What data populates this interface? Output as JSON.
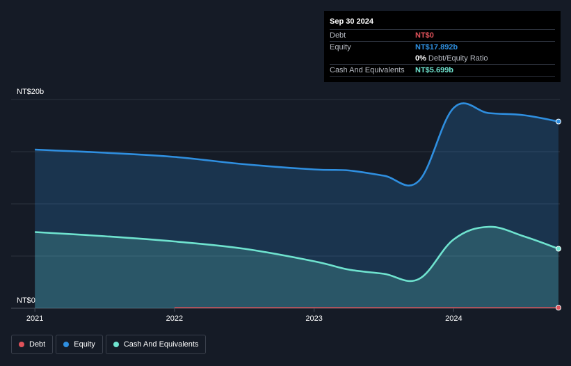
{
  "tooltip": {
    "date": "Sep 30 2024",
    "debt_label": "Debt",
    "debt_value": "NT$0",
    "equity_label": "Equity",
    "equity_value": "NT$17.892b",
    "ratio_value": "0%",
    "ratio_label": "Debt/Equity Ratio",
    "cash_label": "Cash And Equivalents",
    "cash_value": "NT$5.699b"
  },
  "legend": {
    "debt": "Debt",
    "equity": "Equity",
    "cash": "Cash And Equivalents"
  },
  "colors": {
    "debt": "#e0525a",
    "equity": "#2f8fe0",
    "cash": "#6fe3cf",
    "background": "#151b26"
  },
  "chart_data": {
    "type": "area",
    "y_axis_labels": [
      "NT$20b",
      "NT$0"
    ],
    "x_tick_labels": [
      "2021",
      "2022",
      "2023",
      "2024"
    ],
    "x_ticks": [
      2021.0,
      2022.0,
      2023.0,
      2024.0
    ],
    "xlim": [
      2020.83,
      2024.76
    ],
    "ylim": [
      0,
      20
    ],
    "grid": true,
    "legend_position": "bottom-left",
    "series": [
      {
        "name": "Equity",
        "x": [
          2021.0,
          2021.5,
          2022.0,
          2022.5,
          2023.0,
          2023.25,
          2023.5,
          2023.75,
          2024.0,
          2024.25,
          2024.5,
          2024.75
        ],
        "values": [
          15.2,
          14.9,
          14.5,
          13.8,
          13.3,
          13.2,
          12.7,
          12.2,
          19.2,
          18.7,
          18.5,
          17.892
        ]
      },
      {
        "name": "Cash And Equivalents",
        "x": [
          2021.0,
          2021.5,
          2022.0,
          2022.5,
          2023.0,
          2023.25,
          2023.5,
          2023.75,
          2024.0,
          2024.25,
          2024.5,
          2024.75
        ],
        "values": [
          7.3,
          6.9,
          6.4,
          5.7,
          4.5,
          3.7,
          3.3,
          2.8,
          6.6,
          7.8,
          6.9,
          5.699
        ]
      },
      {
        "name": "Debt",
        "x": [
          2022.0,
          2022.5,
          2023.0,
          2023.5,
          2024.0,
          2024.5,
          2024.75
        ],
        "values": [
          0.05,
          0.05,
          0.05,
          0.05,
          0.05,
          0.05,
          0.05
        ]
      }
    ]
  }
}
